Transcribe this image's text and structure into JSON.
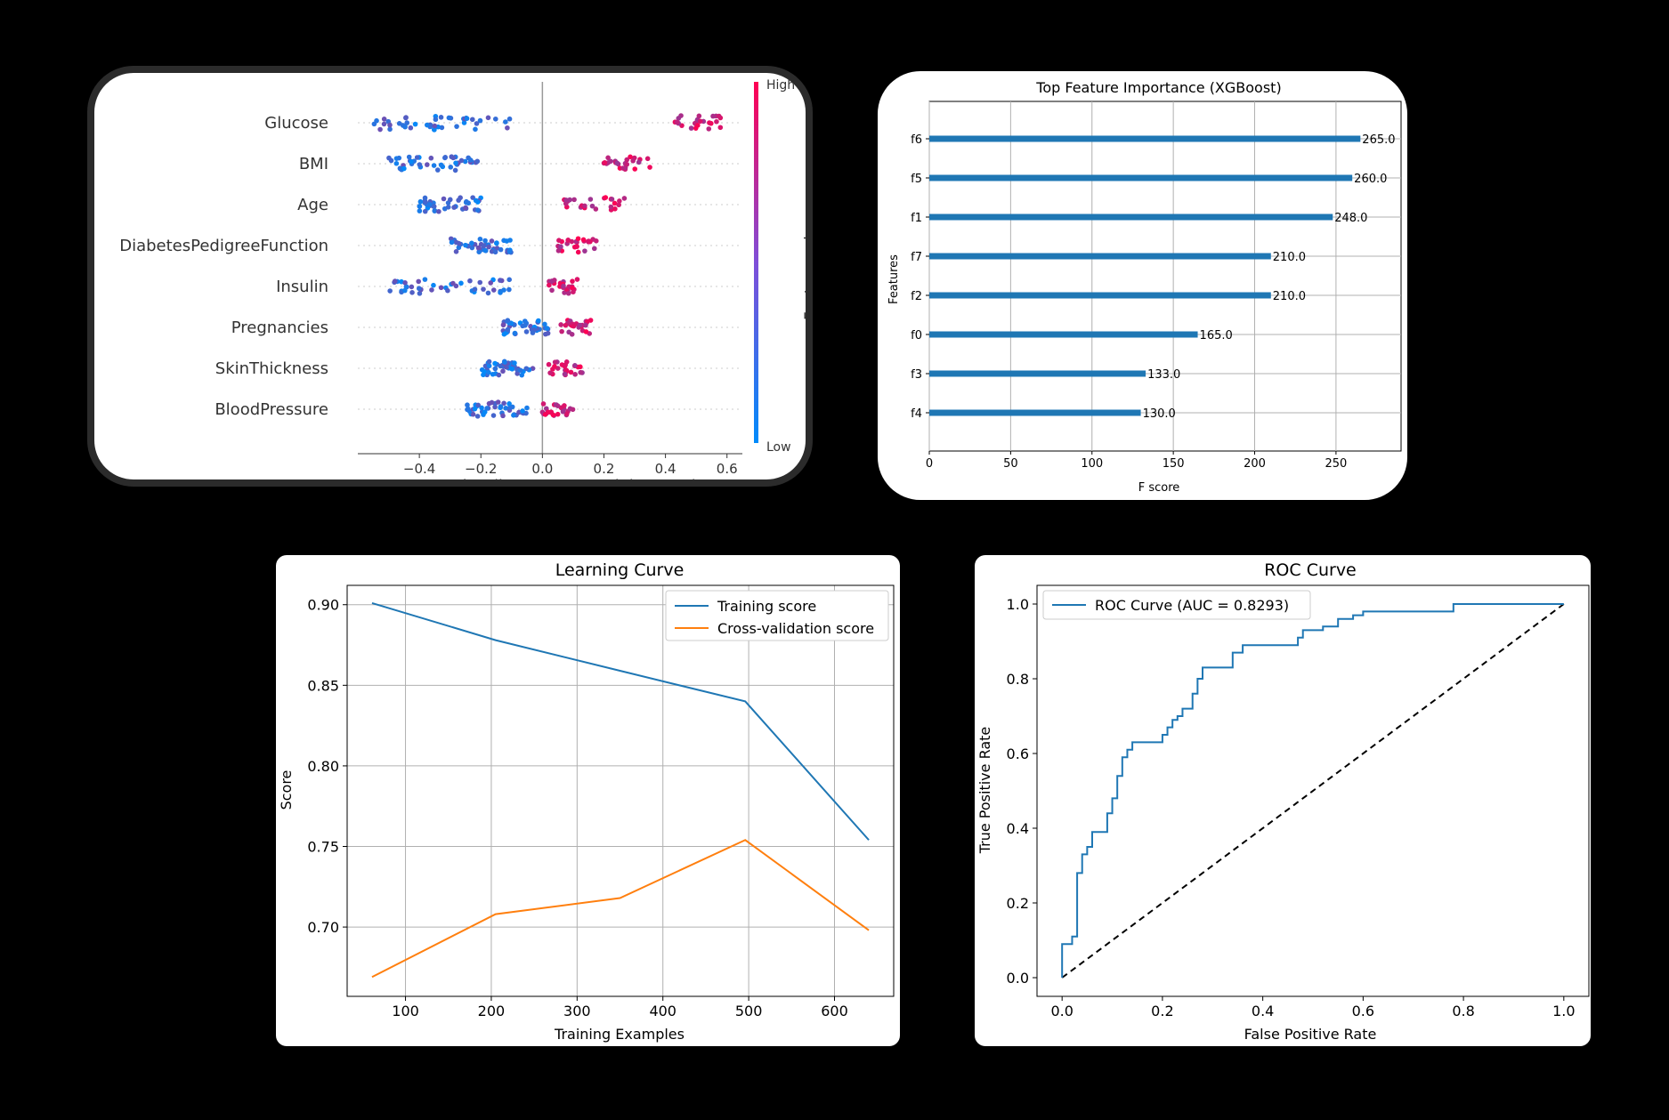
{
  "chart_data": [
    {
      "type": "scatter",
      "subtype": "shap-beeswarm",
      "features": [
        "Glucose",
        "BMI",
        "Age",
        "DiabetesPedigreeFunction",
        "Insulin",
        "Pregnancies",
        "SkinThickness",
        "BloodPressure"
      ],
      "feature_ranges": [
        {
          "low": [
            -0.55,
            -0.1
          ],
          "high": [
            0.43,
            0.58
          ]
        },
        {
          "low": [
            -0.5,
            -0.2
          ],
          "high": [
            0.2,
            0.35
          ]
        },
        {
          "low": [
            -0.4,
            -0.2
          ],
          "high": [
            0.05,
            0.27
          ]
        },
        {
          "low": [
            -0.3,
            -0.1
          ],
          "high": [
            0.05,
            0.18
          ]
        },
        {
          "low": [
            -0.5,
            -0.1
          ],
          "high": [
            0.02,
            0.12
          ]
        },
        {
          "low": [
            -0.13,
            0.02
          ],
          "high": [
            0.06,
            0.16
          ]
        },
        {
          "low": [
            -0.2,
            -0.03
          ],
          "high": [
            0.02,
            0.13
          ]
        },
        {
          "low": [
            -0.25,
            -0.05
          ],
          "high": [
            0.0,
            0.1
          ]
        }
      ],
      "xlabel": "SHAP value (impact on model output)",
      "xticks": [
        -0.4,
        -0.2,
        0.0,
        0.2,
        0.4,
        0.6
      ],
      "xtick_labels": [
        "−0.4",
        "−0.2",
        "0.0",
        "0.2",
        "0.4",
        "0.6"
      ],
      "xlim": [
        -0.6,
        0.65
      ],
      "colorbar": {
        "label": "Feature value",
        "high": "High",
        "low": "Low",
        "colors": [
          "#008bfb",
          "#ff0052"
        ]
      }
    },
    {
      "type": "bar",
      "orientation": "horizontal",
      "title": "Top Feature Importance (XGBoost)",
      "categories": [
        "f6",
        "f5",
        "f1",
        "f7",
        "f2",
        "f0",
        "f3",
        "f4"
      ],
      "values": [
        265.0,
        260.0,
        248.0,
        210.0,
        210.0,
        165.0,
        133.0,
        130.0
      ],
      "value_labels": [
        "265.0",
        "260.0",
        "248.0",
        "210.0",
        "210.0",
        "165.0",
        "133.0",
        "130.0"
      ],
      "xlabel": "F score",
      "ylabel": "Features",
      "xticks": [
        0,
        50,
        100,
        150,
        200,
        250
      ],
      "xlim": [
        0,
        290
      ],
      "grid": true,
      "color": "#1f77b4"
    },
    {
      "type": "line",
      "title": "Learning Curve",
      "xlabel": "Training Examples",
      "ylabel": "Score",
      "x": [
        61,
        205,
        350,
        496,
        640
      ],
      "series": [
        {
          "name": "Training score",
          "values": [
            0.901,
            0.878,
            0.859,
            0.84,
            0.754
          ],
          "color": "#1f77b4"
        },
        {
          "name": "Cross-validation score",
          "values": [
            0.669,
            0.708,
            0.718,
            0.754,
            0.698
          ],
          "color": "#ff7f0e"
        }
      ],
      "xticks": [
        100,
        200,
        300,
        400,
        500,
        600
      ],
      "yticks": [
        0.7,
        0.75,
        0.8,
        0.85,
        0.9
      ],
      "ytick_labels": [
        "0.70",
        "0.75",
        "0.80",
        "0.85",
        "0.90"
      ],
      "xlim": [
        32,
        669
      ],
      "ylim": [
        0.657,
        0.912
      ],
      "grid": true,
      "legend": "top-right"
    },
    {
      "type": "line",
      "title": "ROC Curve",
      "xlabel": "False Positive Rate",
      "ylabel": "True Positive Rate",
      "series": [
        {
          "name": "ROC Curve (AUC = 0.8293)",
          "color": "#1f77b4",
          "x": [
            0,
            0,
            0.02,
            0.02,
            0.03,
            0.03,
            0.04,
            0.04,
            0.05,
            0.05,
            0.06,
            0.06,
            0.09,
            0.09,
            0.1,
            0.1,
            0.11,
            0.11,
            0.12,
            0.12,
            0.13,
            0.13,
            0.14,
            0.14,
            0.2,
            0.2,
            0.21,
            0.21,
            0.22,
            0.22,
            0.23,
            0.23,
            0.24,
            0.24,
            0.26,
            0.26,
            0.27,
            0.27,
            0.28,
            0.28,
            0.34,
            0.34,
            0.36,
            0.36,
            0.38,
            0.38,
            0.47,
            0.47,
            0.48,
            0.48,
            0.52,
            0.52,
            0.55,
            0.55,
            0.58,
            0.58,
            0.6,
            0.6,
            0.62,
            0.62,
            0.78,
            0.78,
            1.0
          ],
          "y": [
            0,
            0.09,
            0.09,
            0.11,
            0.11,
            0.28,
            0.28,
            0.33,
            0.33,
            0.35,
            0.35,
            0.39,
            0.39,
            0.44,
            0.44,
            0.48,
            0.48,
            0.54,
            0.54,
            0.59,
            0.59,
            0.61,
            0.61,
            0.63,
            0.63,
            0.65,
            0.65,
            0.67,
            0.67,
            0.69,
            0.69,
            0.7,
            0.7,
            0.72,
            0.72,
            0.76,
            0.76,
            0.8,
            0.8,
            0.83,
            0.83,
            0.87,
            0.87,
            0.89,
            0.89,
            0.89,
            0.89,
            0.91,
            0.91,
            0.93,
            0.93,
            0.94,
            0.94,
            0.96,
            0.96,
            0.97,
            0.97,
            0.98,
            0.98,
            0.98,
            0.98,
            1.0,
            1.0
          ]
        },
        {
          "name": "",
          "values_x": [
            0,
            1
          ],
          "values_y": [
            0,
            1
          ],
          "style": "dashed",
          "color": "#000000"
        }
      ],
      "xticks": [
        0.0,
        0.2,
        0.4,
        0.6,
        0.8,
        1.0
      ],
      "yticks": [
        0.0,
        0.2,
        0.4,
        0.6,
        0.8,
        1.0
      ],
      "tick_labels": [
        "0.0",
        "0.2",
        "0.4",
        "0.6",
        "0.8",
        "1.0"
      ],
      "xlim": [
        -0.05,
        1.05
      ],
      "ylim": [
        -0.05,
        1.05
      ],
      "legend": "top-left"
    }
  ]
}
